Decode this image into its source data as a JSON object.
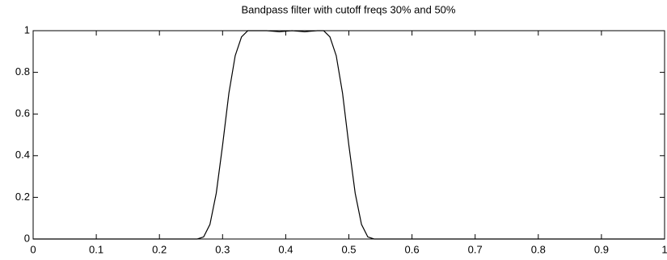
{
  "chart_data": {
    "type": "line",
    "title": "Bandpass filter with cutoff freqs 30% and 50%",
    "x": [
      0,
      0.25,
      0.26,
      0.27,
      0.28,
      0.29,
      0.3,
      0.31,
      0.32,
      0.33,
      0.34,
      0.35,
      0.37,
      0.39,
      0.41,
      0.43,
      0.45,
      0.46,
      0.47,
      0.48,
      0.49,
      0.5,
      0.51,
      0.52,
      0.53,
      0.54,
      1
    ],
    "series": [
      {
        "color": "#000000",
        "values": [
          0,
          0,
          0,
          0.01,
          0.07,
          0.22,
          0.45,
          0.7,
          0.88,
          0.97,
          1.0,
          1.0,
          1.0,
          0.995,
          1.0,
          0.995,
          1.0,
          1.0,
          0.97,
          0.88,
          0.7,
          0.45,
          0.22,
          0.07,
          0.01,
          0,
          0
        ]
      }
    ],
    "xlim": [
      0,
      1
    ],
    "xticks": [
      0,
      0.1,
      0.2,
      0.3,
      0.4,
      0.5,
      0.6,
      0.7,
      0.8,
      0.9,
      1
    ],
    "ylim": [
      0,
      1
    ],
    "yticks": [
      0,
      0.2,
      0.4,
      0.6,
      0.8,
      1
    ]
  }
}
